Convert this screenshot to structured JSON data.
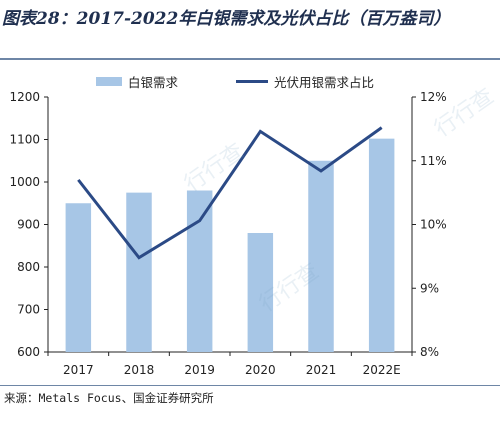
{
  "title": "图表28：2017-2022年白银需求及光伏占比（百万盎司）",
  "source": "来源：Metals Focus、国金证券研究所",
  "watermark_text": "行行查",
  "colors": {
    "bar": "#a7c6e6",
    "line": "#2b4a86",
    "axis": "#222222"
  },
  "chart_data": {
    "type": "bar",
    "categories": [
      "2017",
      "2018",
      "2019",
      "2020",
      "2021",
      "2022E"
    ],
    "series": [
      {
        "name": "白银需求",
        "type": "bar",
        "axis": "left",
        "values": [
          950,
          975,
          980,
          880,
          1050,
          1102
        ]
      },
      {
        "name": "光伏用银需求占比",
        "type": "line",
        "axis": "right",
        "values": [
          10.7,
          9.48,
          10.06,
          11.46,
          10.84,
          11.52
        ]
      }
    ],
    "ylim_left": [
      600,
      1200
    ],
    "yticks_left": [
      600,
      700,
      800,
      900,
      1000,
      1100,
      1200
    ],
    "ylim_right": [
      8,
      12
    ],
    "yticks_right": [
      "8%",
      "9%",
      "10%",
      "11%",
      "12%"
    ],
    "legend_position": "top",
    "grid": false
  }
}
